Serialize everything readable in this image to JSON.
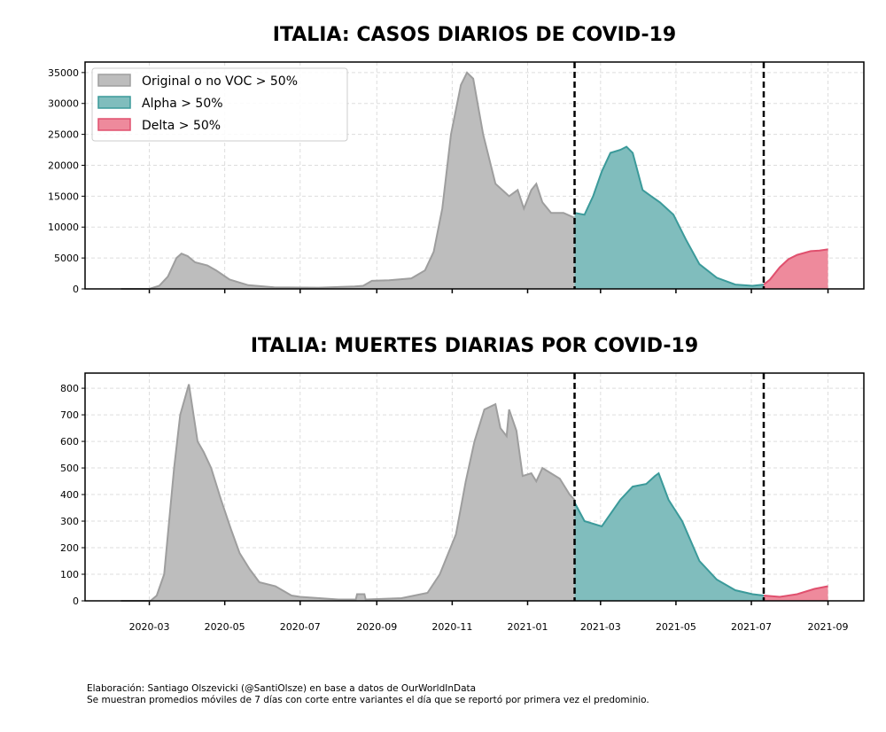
{
  "colors": {
    "original": "#bdbdbd",
    "original_line": "#9e9e9e",
    "alpha": "#80bdbd",
    "alpha_line": "#3b9a9a",
    "delta": "#ee8a9c",
    "delta_line": "#e0506e"
  },
  "footer": [
    "Elaboración: Santiago Olszevicki (@SantiOlsze) en base a datos de OurWorldInData",
    "Se muestran promedios móviles de 7 días con corte entre variantes el día que se reportó por primera vez el predominio."
  ],
  "chart_data": [
    {
      "type": "area",
      "title": "ITALIA: CASOS DIARIOS DE COVID-19",
      "x_unit": "days since 2020-03-01",
      "xlim": [
        -52,
        578
      ],
      "ylim": [
        0,
        36700
      ],
      "yticks": [
        0,
        5000,
        10000,
        15000,
        20000,
        25000,
        30000,
        35000
      ],
      "xticks": [
        {
          "day": 0,
          "label": "2020-03"
        },
        {
          "day": 61,
          "label": "2020-05"
        },
        {
          "day": 122,
          "label": "2020-07"
        },
        {
          "day": 184,
          "label": "2020-09"
        },
        {
          "day": 245,
          "label": "2020-11"
        },
        {
          "day": 306,
          "label": "2021-01"
        },
        {
          "day": 365,
          "label": "2021-03"
        },
        {
          "day": 426,
          "label": "2021-05"
        },
        {
          "day": 487,
          "label": "2021-07"
        },
        {
          "day": 549,
          "label": "2021-09"
        }
      ],
      "show_xtick_labels": false,
      "vlines": [
        344,
        497
      ],
      "legend": {
        "placement": "top-left",
        "entries": [
          "Original o no VOC > 50%",
          "Alpha > 50%",
          "Delta > 50%"
        ]
      },
      "series": [
        {
          "name": "Original o no VOC > 50%",
          "key": "original",
          "points": [
            [
              -23,
              0
            ],
            [
              0,
              0
            ],
            [
              8,
              500
            ],
            [
              15,
              2000
            ],
            [
              22,
              5000
            ],
            [
              26,
              5700
            ],
            [
              31,
              5300
            ],
            [
              37,
              4300
            ],
            [
              47,
              3800
            ],
            [
              54,
              3000
            ],
            [
              65,
              1500
            ],
            [
              80,
              600
            ],
            [
              101,
              250
            ],
            [
              137,
              200
            ],
            [
              166,
              400
            ],
            [
              173,
              500
            ],
            [
              180,
              1300
            ],
            [
              194,
              1400
            ],
            [
              212,
              1700
            ],
            [
              223,
              3000
            ],
            [
              230,
              6000
            ],
            [
              237,
              13000
            ],
            [
              244,
              25000
            ],
            [
              252,
              33000
            ],
            [
              257,
              35000
            ],
            [
              262,
              34000
            ],
            [
              270,
              25000
            ],
            [
              280,
              17000
            ],
            [
              291,
              15000
            ],
            [
              298,
              16000
            ],
            [
              303,
              13000
            ],
            [
              309,
              16000
            ],
            [
              313,
              17000
            ],
            [
              318,
              14000
            ],
            [
              325,
              12300
            ],
            [
              335,
              12300
            ],
            [
              344,
              11500
            ]
          ]
        },
        {
          "name": "Alpha > 50%",
          "key": "alpha",
          "points": [
            [
              344,
              12300
            ],
            [
              352,
              12000
            ],
            [
              359,
              15000
            ],
            [
              366,
              19000
            ],
            [
              373,
              22000
            ],
            [
              381,
              22500
            ],
            [
              386,
              23000
            ],
            [
              391,
              22000
            ],
            [
              399,
              16000
            ],
            [
              406,
              15000
            ],
            [
              413,
              14000
            ],
            [
              424,
              12000
            ],
            [
              434,
              8000
            ],
            [
              445,
              4000
            ],
            [
              459,
              1800
            ],
            [
              474,
              700
            ],
            [
              488,
              500
            ],
            [
              497,
              700
            ]
          ]
        },
        {
          "name": "Delta > 50%",
          "key": "delta",
          "points": [
            [
              497,
              700
            ],
            [
              502,
              1500
            ],
            [
              510,
              3500
            ],
            [
              517,
              4800
            ],
            [
              524,
              5500
            ],
            [
              535,
              6100
            ],
            [
              542,
              6200
            ],
            [
              549,
              6400
            ]
          ]
        }
      ]
    },
    {
      "type": "area",
      "title": "ITALIA: MUERTES DIARIAS POR COVID-19",
      "x_unit": "days since 2020-03-01",
      "xlim": [
        -52,
        578
      ],
      "ylim": [
        0,
        857
      ],
      "yticks": [
        0,
        100,
        200,
        300,
        400,
        500,
        600,
        700,
        800
      ],
      "xticks": [
        {
          "day": 0,
          "label": "2020-03"
        },
        {
          "day": 61,
          "label": "2020-05"
        },
        {
          "day": 122,
          "label": "2020-07"
        },
        {
          "day": 184,
          "label": "2020-09"
        },
        {
          "day": 245,
          "label": "2020-11"
        },
        {
          "day": 306,
          "label": "2021-01"
        },
        {
          "day": 365,
          "label": "2021-03"
        },
        {
          "day": 426,
          "label": "2021-05"
        },
        {
          "day": 487,
          "label": "2021-07"
        },
        {
          "day": 549,
          "label": "2021-09"
        }
      ],
      "show_xtick_labels": true,
      "vlines": [
        344,
        497
      ],
      "series": [
        {
          "name": "Original o no VOC > 50%",
          "key": "original",
          "points": [
            [
              -23,
              0
            ],
            [
              1,
              0
            ],
            [
              6,
              20
            ],
            [
              12,
              100
            ],
            [
              20,
              500
            ],
            [
              25,
              700
            ],
            [
              32,
              815
            ],
            [
              39,
              600
            ],
            [
              44,
              560
            ],
            [
              50,
              500
            ],
            [
              58,
              380
            ],
            [
              66,
              270
            ],
            [
              73,
              180
            ],
            [
              81,
              120
            ],
            [
              89,
              70
            ],
            [
              102,
              55
            ],
            [
              115,
              20
            ],
            [
              122,
              15
            ],
            [
              153,
              5
            ],
            [
              167,
              5
            ],
            [
              168,
              25
            ],
            [
              174,
              25
            ],
            [
              175,
              5
            ],
            [
              204,
              10
            ],
            [
              225,
              30
            ],
            [
              235,
              100
            ],
            [
              248,
              250
            ],
            [
              256,
              450
            ],
            [
              263,
              600
            ],
            [
              271,
              720
            ],
            [
              280,
              740
            ],
            [
              284,
              650
            ],
            [
              289,
              620
            ],
            [
              291,
              720
            ],
            [
              297,
              640
            ],
            [
              302,
              470
            ],
            [
              309,
              480
            ],
            [
              313,
              450
            ],
            [
              318,
              500
            ],
            [
              325,
              480
            ],
            [
              332,
              460
            ],
            [
              340,
              400
            ],
            [
              344,
              380
            ]
          ]
        },
        {
          "name": "Alpha > 50%",
          "key": "alpha",
          "points": [
            [
              344,
              370
            ],
            [
              352,
              300
            ],
            [
              366,
              280
            ],
            [
              381,
              380
            ],
            [
              391,
              430
            ],
            [
              402,
              440
            ],
            [
              409,
              470
            ],
            [
              412,
              480
            ],
            [
              420,
              380
            ],
            [
              431,
              300
            ],
            [
              445,
              150
            ],
            [
              459,
              80
            ],
            [
              474,
              40
            ],
            [
              488,
              25
            ],
            [
              497,
              20
            ]
          ]
        },
        {
          "name": "Delta > 50%",
          "key": "delta",
          "points": [
            [
              497,
              20
            ],
            [
              510,
              15
            ],
            [
              524,
              25
            ],
            [
              538,
              45
            ],
            [
              549,
              55
            ]
          ]
        }
      ]
    }
  ]
}
